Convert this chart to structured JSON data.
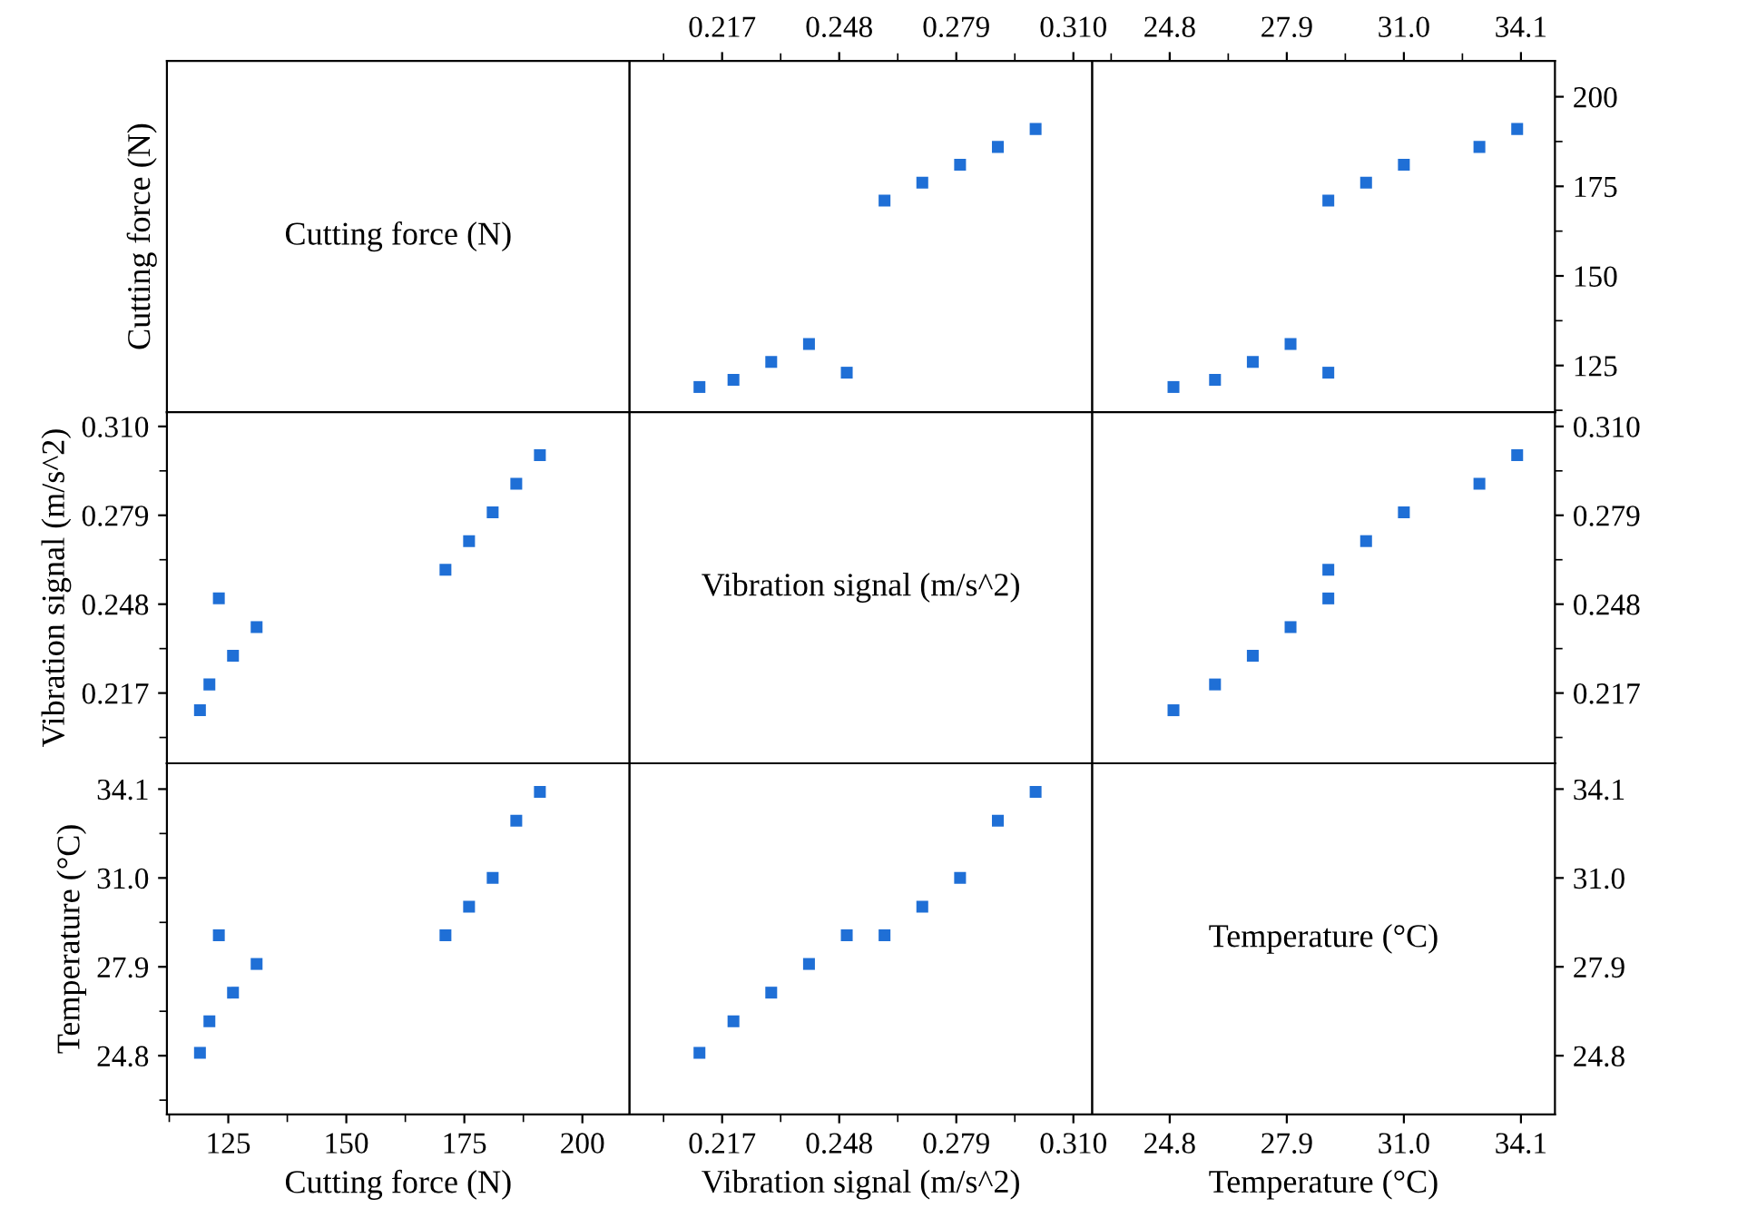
{
  "chart_data": [
    {
      "type": "scatter",
      "annotations": [
        "Cutting force (N)"
      ],
      "ylabel": "Cutting force (N)",
      "xlim": [
        112,
        210
      ],
      "ylim": [
        112,
        210
      ],
      "tick_labels": false
    },
    {
      "type": "scatter",
      "x": [
        0.211,
        0.22,
        0.23,
        0.24,
        0.25,
        0.26,
        0.27,
        0.28,
        0.29,
        0.3
      ],
      "values": [
        119,
        121,
        126,
        131,
        123,
        171,
        176,
        181,
        186,
        191
      ],
      "color": "#1f6fd6",
      "marker": "square",
      "xlim": [
        0.1925,
        0.315
      ],
      "xticks": [
        {
          "value": 0.2015,
          "label": null
        },
        {
          "value": 0.217,
          "label": "0.217"
        },
        {
          "value": 0.2325,
          "label": null
        },
        {
          "value": 0.248,
          "label": "0.248"
        },
        {
          "value": 0.2635,
          "label": null
        },
        {
          "value": 0.279,
          "label": "0.279"
        },
        {
          "value": 0.2945,
          "label": null
        },
        {
          "value": 0.31,
          "label": "0.310"
        }
      ],
      "ylim": [
        112,
        210
      ],
      "tick_labels": "x"
    },
    {
      "type": "scatter",
      "x": [
        24.9,
        26.0,
        27.0,
        28.0,
        29.0,
        29.0,
        30.0,
        31.0,
        33.0,
        34.0
      ],
      "values": [
        119,
        121,
        126,
        131,
        123,
        171,
        176,
        181,
        186,
        191
      ],
      "color": "#1f6fd6",
      "marker": "square",
      "xlim": [
        22.75,
        35.0
      ],
      "xticks": [
        {
          "value": 23.25,
          "label": null
        },
        24.8,
        {
          "value": 26.35,
          "label": null
        },
        27.9,
        {
          "value": 29.45,
          "label": null
        },
        {
          "value": 31.0,
          "label": "31.0"
        },
        {
          "value": 32.55,
          "label": null
        },
        34.1
      ],
      "ylim": [
        112,
        210
      ],
      "yticks": [
        {
          "value": 112.5,
          "label": null
        },
        125,
        {
          "value": 137.5,
          "label": null
        },
        150,
        {
          "value": 162.5,
          "label": null
        },
        175,
        {
          "value": 187.5,
          "label": null
        },
        200
      ]
    },
    {
      "type": "scatter",
      "x": [
        119,
        121,
        126,
        131,
        123,
        171,
        176,
        181,
        186,
        191
      ],
      "values": [
        0.211,
        0.22,
        0.23,
        0.24,
        0.25,
        0.26,
        0.27,
        0.28,
        0.29,
        0.3
      ],
      "color": "#1f6fd6",
      "marker": "square",
      "ylabel": "Vibration signal (m/s^2)",
      "xlim": [
        112,
        210
      ],
      "ylim": [
        0.1925,
        0.315
      ],
      "yticks": [
        {
          "value": 0.2015,
          "label": null
        },
        {
          "value": 0.217,
          "label": "0.217"
        },
        {
          "value": 0.2325,
          "label": null
        },
        {
          "value": 0.248,
          "label": "0.248"
        },
        {
          "value": 0.2635,
          "label": null
        },
        {
          "value": 0.279,
          "label": "0.279"
        },
        {
          "value": 0.2945,
          "label": null
        },
        {
          "value": 0.31,
          "label": "0.310"
        }
      ],
      "tick_labels": "y"
    },
    {
      "type": "scatter",
      "annotations": [
        "Vibration signal (m/s^2)"
      ],
      "xlim": [
        0.1925,
        0.315
      ],
      "ylim": [
        0.1925,
        0.315
      ],
      "tick_labels": false
    },
    {
      "type": "scatter",
      "x": [
        24.9,
        26.0,
        27.0,
        28.0,
        29.0,
        29.0,
        30.0,
        31.0,
        33.0,
        34.0
      ],
      "values": [
        0.211,
        0.22,
        0.23,
        0.24,
        0.25,
        0.26,
        0.27,
        0.28,
        0.29,
        0.3
      ],
      "color": "#1f6fd6",
      "marker": "square",
      "xlim": [
        22.75,
        35.0
      ],
      "ylim": [
        0.1925,
        0.315
      ],
      "yticks": [
        {
          "value": 0.2015,
          "label": null
        },
        {
          "value": 0.217,
          "label": "0.217"
        },
        {
          "value": 0.2325,
          "label": null
        },
        {
          "value": 0.248,
          "label": "0.248"
        },
        {
          "value": 0.2635,
          "label": null
        },
        {
          "value": 0.279,
          "label": "0.279"
        },
        {
          "value": 0.2945,
          "label": null
        },
        {
          "value": 0.31,
          "label": "0.310"
        }
      ],
      "tick_labels": "y"
    },
    {
      "type": "scatter",
      "x": [
        119,
        121,
        126,
        131,
        123,
        171,
        176,
        181,
        186,
        191
      ],
      "values": [
        24.9,
        26.0,
        27.0,
        28.0,
        29.0,
        29.0,
        30.0,
        31.0,
        33.0,
        34.0
      ],
      "color": "#1f6fd6",
      "marker": "square",
      "xlabel": "Cutting force (N)",
      "ylabel": "Temperature (°C)",
      "xlim": [
        112,
        210
      ],
      "xticks": [
        {
          "value": 112.5,
          "label": null
        },
        125,
        {
          "value": 137.5,
          "label": null
        },
        150,
        {
          "value": 162.5,
          "label": null
        },
        175,
        {
          "value": 187.5,
          "label": null
        },
        200
      ],
      "ylim": [
        22.75,
        35.0
      ],
      "yticks": [
        {
          "value": 23.25,
          "label": null
        },
        24.8,
        {
          "value": 26.35,
          "label": null
        },
        27.9,
        {
          "value": 29.45,
          "label": null
        },
        {
          "value": 31.0,
          "label": "31.0"
        },
        {
          "value": 32.55,
          "label": null
        },
        34.1
      ]
    },
    {
      "type": "scatter",
      "x": [
        0.211,
        0.22,
        0.23,
        0.24,
        0.25,
        0.26,
        0.27,
        0.28,
        0.29,
        0.3
      ],
      "values": [
        24.9,
        26.0,
        27.0,
        28.0,
        29.0,
        29.0,
        30.0,
        31.0,
        33.0,
        34.0
      ],
      "color": "#1f6fd6",
      "marker": "square",
      "xlabel": "Vibration signal (m/s^2)",
      "xlim": [
        0.1925,
        0.315
      ],
      "xticks": [
        {
          "value": 0.2015,
          "label": null
        },
        {
          "value": 0.217,
          "label": "0.217"
        },
        {
          "value": 0.2325,
          "label": null
        },
        {
          "value": 0.248,
          "label": "0.248"
        },
        {
          "value": 0.2635,
          "label": null
        },
        {
          "value": 0.279,
          "label": "0.279"
        },
        {
          "value": 0.2945,
          "label": null
        },
        {
          "value": 0.31,
          "label": "0.310"
        }
      ],
      "ylim": [
        22.75,
        35.0
      ],
      "tick_labels": "x"
    },
    {
      "type": "scatter",
      "annotations": [
        "Temperature (°C)"
      ],
      "xlabel": "Temperature (°C)",
      "xlim": [
        22.75,
        35.0
      ],
      "xticks": [
        24.8,
        27.9,
        {
          "value": 31.0,
          "label": "31.0"
        },
        34.1
      ],
      "ylim": [
        22.75,
        35.0
      ],
      "yticks": [
        24.8,
        27.9,
        {
          "value": 31.0,
          "label": "31.0"
        },
        34.1
      ]
    }
  ]
}
